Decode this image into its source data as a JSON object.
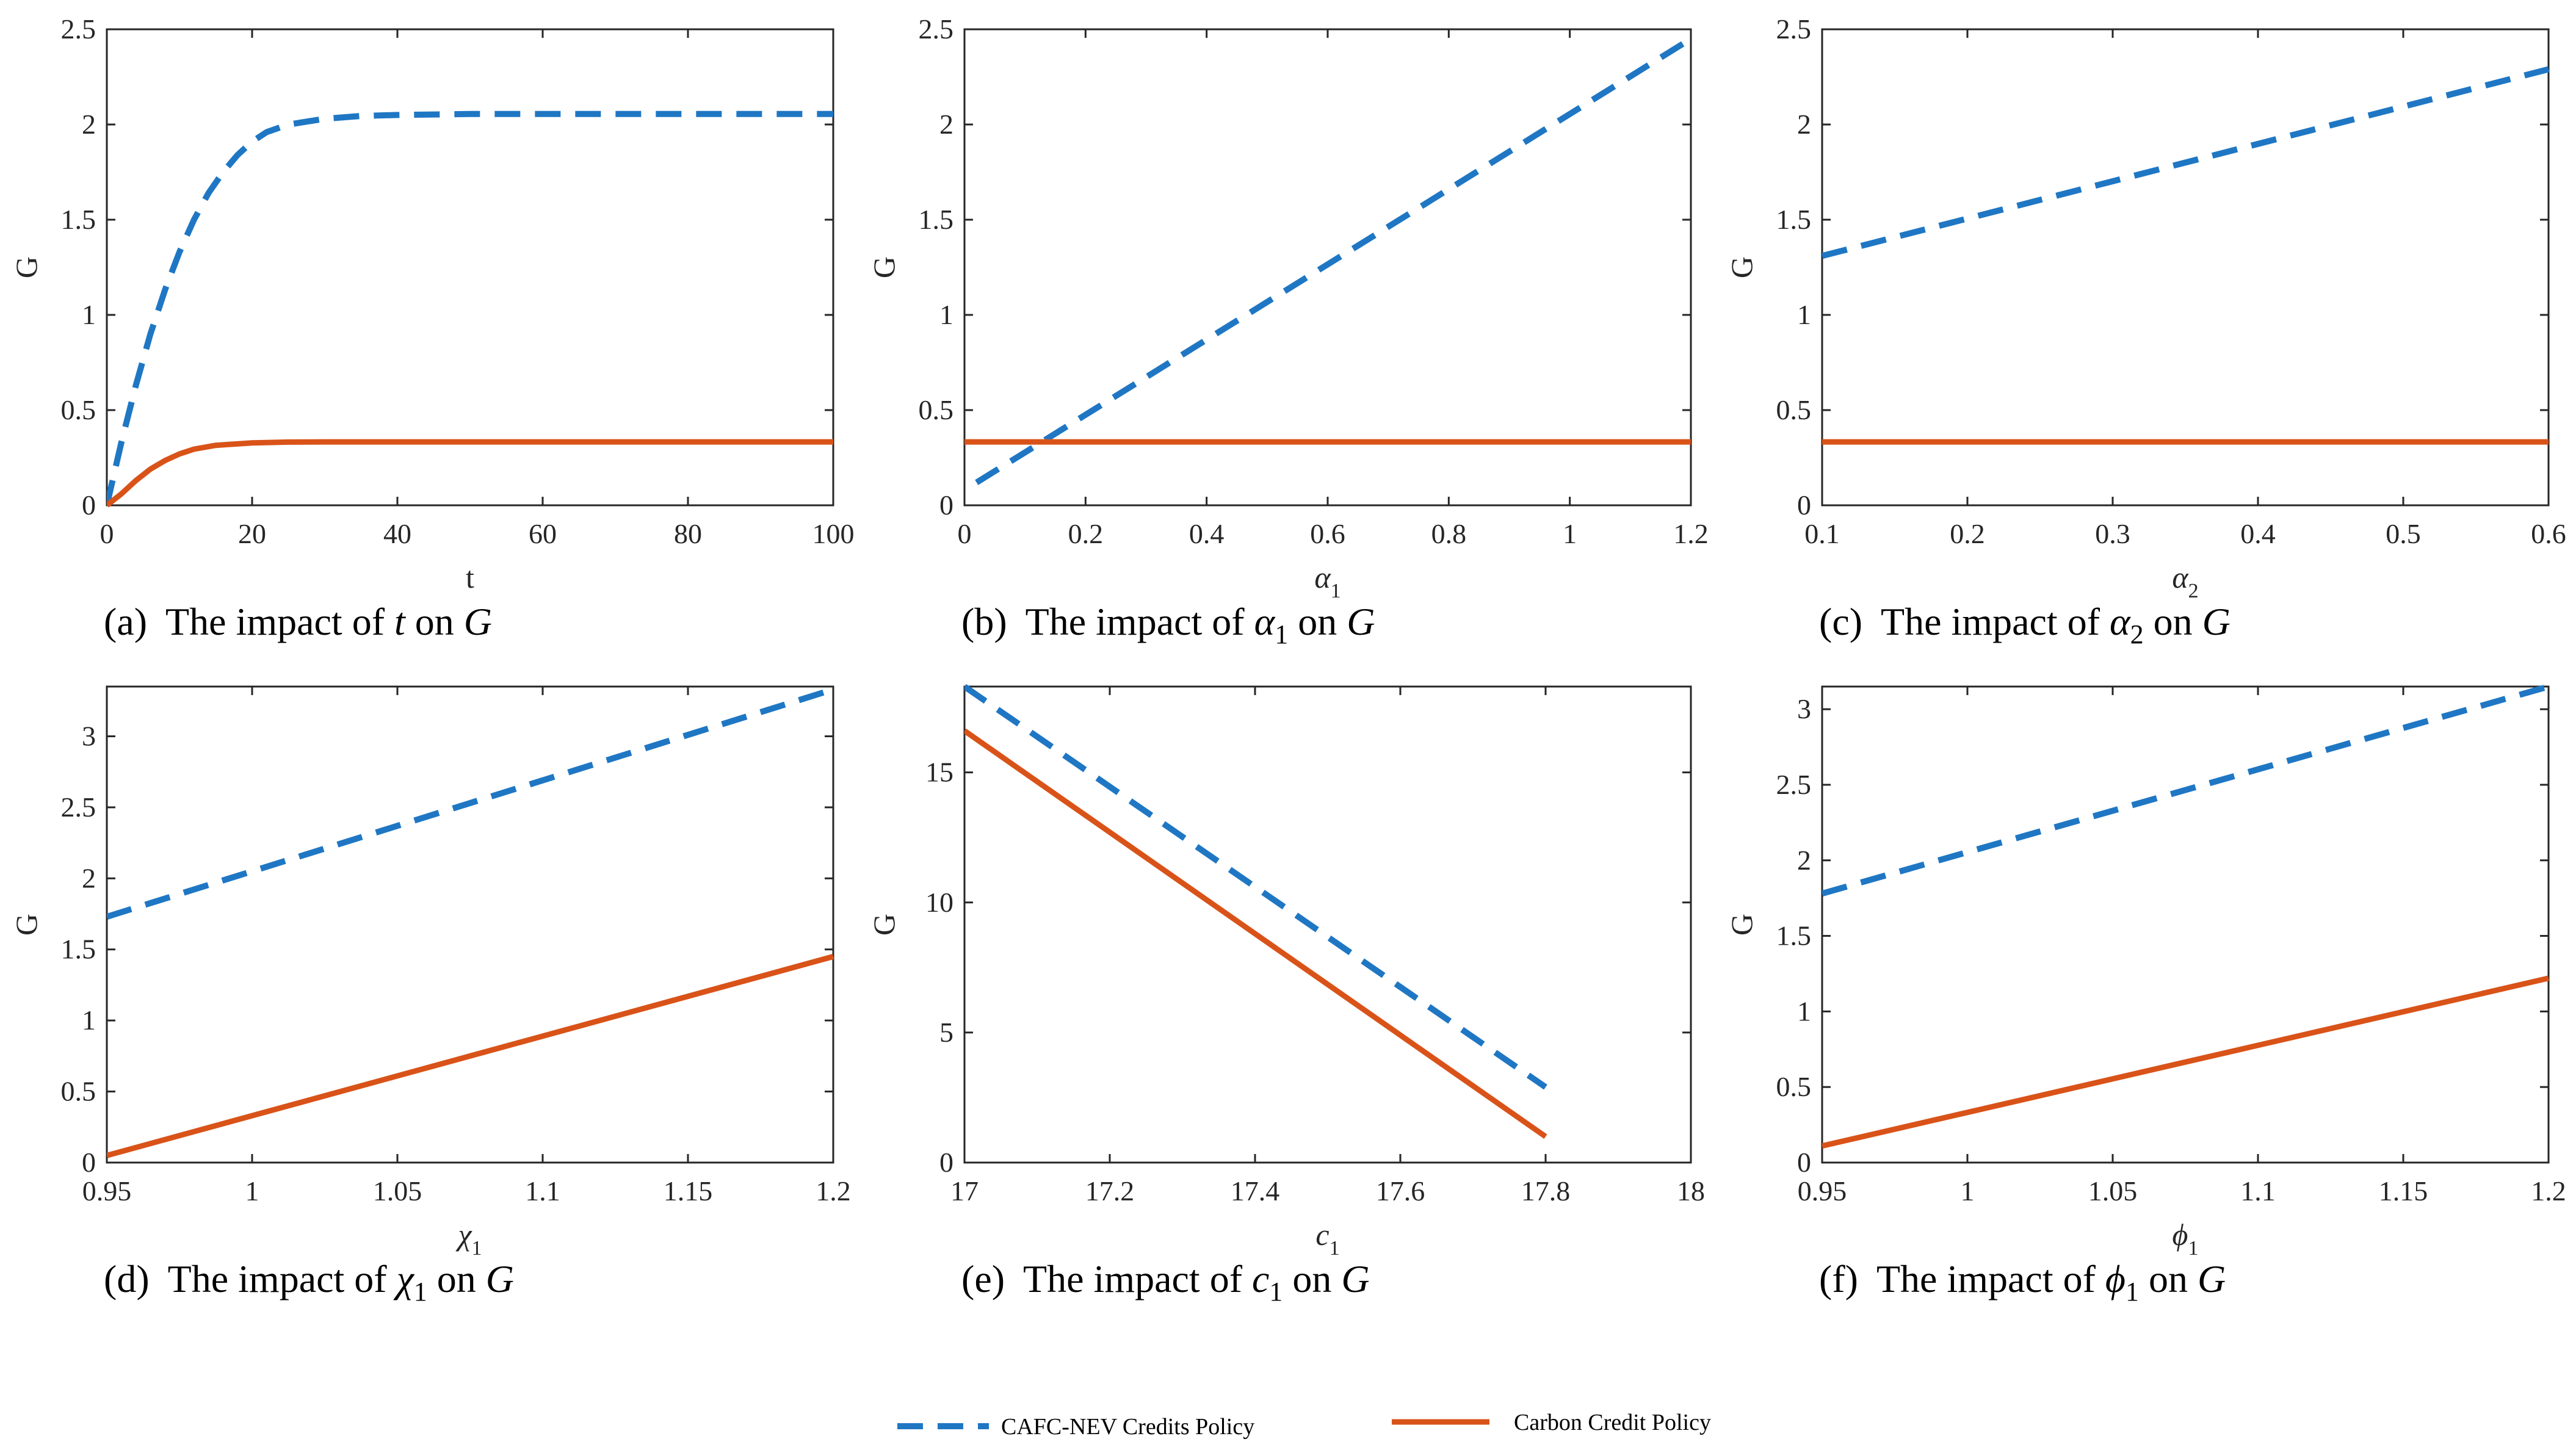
{
  "colors": {
    "cafc": "#1f77c4",
    "carbon": "#d95319"
  },
  "legend": {
    "cafc_label": "CAFC-NEV Credits Policy",
    "carbon_label": "Carbon Credit Policy"
  },
  "chart_data": [
    {
      "type": "line",
      "caption": {
        "tag": "(a)",
        "text": "The impact of",
        "var": "t",
        "sub": "",
        "tail": "on",
        "target": "G"
      },
      "xlabel": {
        "main": "t",
        "sub": ""
      },
      "ylabel": "G",
      "xlim": [
        0,
        100
      ],
      "ylim": [
        0,
        2.5
      ],
      "xticks": [
        0,
        20,
        40,
        60,
        80,
        100
      ],
      "xtick_labels": [
        "0",
        "20",
        "40",
        "60",
        "80",
        "100"
      ],
      "yticks": [
        0,
        0.5,
        1,
        1.5,
        2,
        2.5
      ],
      "ytick_labels": [
        "0",
        "0.5",
        "1",
        "1.5",
        "2",
        "2.5"
      ],
      "series": [
        {
          "name": "CAFC-NEV Credits Policy",
          "style": "dashed",
          "x": [
            0,
            2,
            4,
            6,
            8,
            10,
            12,
            14,
            16,
            18,
            20,
            22,
            25,
            30,
            35,
            40,
            50,
            60,
            70,
            80,
            90,
            100
          ],
          "y": [
            0,
            0.33,
            0.63,
            0.9,
            1.13,
            1.33,
            1.5,
            1.64,
            1.75,
            1.84,
            1.91,
            1.96,
            2.0,
            2.03,
            2.045,
            2.05,
            2.055,
            2.055,
            2.055,
            2.055,
            2.055,
            2.055
          ]
        },
        {
          "name": "Carbon Credit Policy",
          "style": "solid",
          "x": [
            0,
            2,
            4,
            6,
            8,
            10,
            12,
            15,
            20,
            25,
            30,
            40,
            60,
            80,
            100
          ],
          "y": [
            0,
            0.06,
            0.13,
            0.19,
            0.235,
            0.27,
            0.295,
            0.315,
            0.328,
            0.332,
            0.333,
            0.333,
            0.333,
            0.333,
            0.333
          ]
        }
      ]
    },
    {
      "type": "line",
      "caption": {
        "tag": "(b)",
        "text": "The impact of",
        "var": "α",
        "sub": "1",
        "tail": "on",
        "target": "G"
      },
      "xlabel": {
        "main": "α",
        "sub": "1"
      },
      "ylabel": "G",
      "xlim": [
        0,
        1.2
      ],
      "ylim": [
        0,
        2.5
      ],
      "xticks": [
        0,
        0.2,
        0.4,
        0.6,
        0.8,
        1,
        1.2
      ],
      "xtick_labels": [
        "0",
        "0.2",
        "0.4",
        "0.6",
        "0.8",
        "1",
        "1.2"
      ],
      "yticks": [
        0,
        0.5,
        1,
        1.5,
        2,
        2.5
      ],
      "ytick_labels": [
        "0",
        "0.5",
        "1",
        "1.5",
        "2",
        "2.5"
      ],
      "series": [
        {
          "name": "CAFC-NEV Credits Policy",
          "style": "dashed",
          "x": [
            0.02,
            1.2
          ],
          "y": [
            0.12,
            2.45
          ]
        },
        {
          "name": "Carbon Credit Policy",
          "style": "solid",
          "x": [
            0,
            1.2
          ],
          "y": [
            0.333,
            0.333
          ]
        }
      ]
    },
    {
      "type": "line",
      "caption": {
        "tag": "(c)",
        "text": "The impact of",
        "var": "α",
        "sub": "2",
        "tail": "on",
        "target": "G"
      },
      "xlabel": {
        "main": "α",
        "sub": "2"
      },
      "ylabel": "G",
      "xlim": [
        0.1,
        0.6
      ],
      "ylim": [
        0,
        2.5
      ],
      "xticks": [
        0.1,
        0.2,
        0.3,
        0.4,
        0.5,
        0.6
      ],
      "xtick_labels": [
        "0.1",
        "0.2",
        "0.3",
        "0.4",
        "0.5",
        "0.6"
      ],
      "yticks": [
        0,
        0.5,
        1,
        1.5,
        2,
        2.5
      ],
      "ytick_labels": [
        "0",
        "0.5",
        "1",
        "1.5",
        "2",
        "2.5"
      ],
      "series": [
        {
          "name": "CAFC-NEV Credits Policy",
          "style": "dashed",
          "x": [
            0.1,
            0.6
          ],
          "y": [
            1.31,
            2.29
          ]
        },
        {
          "name": "Carbon Credit Policy",
          "style": "solid",
          "x": [
            0.1,
            0.6
          ],
          "y": [
            0.333,
            0.333
          ]
        }
      ]
    },
    {
      "type": "line",
      "caption": {
        "tag": "(d)",
        "text": "The impact of",
        "var": "χ",
        "sub": "1",
        "tail": "on",
        "target": "G"
      },
      "xlabel": {
        "main": "χ",
        "sub": "1"
      },
      "ylabel": "G",
      "xlim": [
        0.95,
        1.2
      ],
      "ylim": [
        0,
        3.35
      ],
      "xticks": [
        0.95,
        1,
        1.05,
        1.1,
        1.15,
        1.2
      ],
      "xtick_labels": [
        "0.95",
        "1",
        "1.05",
        "1.1",
        "1.15",
        "1.2"
      ],
      "yticks": [
        0,
        0.5,
        1,
        1.5,
        2,
        2.5,
        3
      ],
      "ytick_labels": [
        "0",
        "0.5",
        "1",
        "1.5",
        "2",
        "2.5",
        "3"
      ],
      "series": [
        {
          "name": "CAFC-NEV Credits Policy",
          "style": "dashed",
          "x": [
            0.95,
            1.2
          ],
          "y": [
            1.73,
            3.33
          ]
        },
        {
          "name": "Carbon Credit Policy",
          "style": "solid",
          "x": [
            0.95,
            1.2
          ],
          "y": [
            0.05,
            1.45
          ]
        }
      ]
    },
    {
      "type": "line",
      "caption": {
        "tag": "(e)",
        "text": "The impact of",
        "var": "c",
        "sub": "1",
        "tail": "on",
        "target": "G"
      },
      "xlabel": {
        "main": "c",
        "sub": "1"
      },
      "ylabel": "G",
      "xlim": [
        17,
        18
      ],
      "ylim": [
        0,
        18.3
      ],
      "xticks": [
        17,
        17.2,
        17.4,
        17.6,
        17.8,
        18
      ],
      "xtick_labels": [
        "17",
        "17.2",
        "17.4",
        "17.6",
        "17.8",
        "18"
      ],
      "yticks": [
        0,
        5,
        10,
        15
      ],
      "ytick_labels": [
        "0",
        "5",
        "10",
        "15"
      ],
      "series": [
        {
          "name": "CAFC-NEV Credits Policy",
          "style": "dashed",
          "x": [
            17.0,
            17.8
          ],
          "y": [
            18.3,
            2.9
          ]
        },
        {
          "name": "Carbon Credit Policy",
          "style": "solid",
          "x": [
            17.0,
            17.8
          ],
          "y": [
            16.6,
            1.0
          ]
        }
      ]
    },
    {
      "type": "line",
      "caption": {
        "tag": "(f)",
        "text": "The impact of",
        "var": "ϕ",
        "sub": "1",
        "tail": "on",
        "target": "G"
      },
      "xlabel": {
        "main": "ϕ",
        "sub": "1"
      },
      "ylabel": "G",
      "xlim": [
        0.95,
        1.2
      ],
      "ylim": [
        0,
        3.15
      ],
      "xticks": [
        0.95,
        1,
        1.05,
        1.1,
        1.15,
        1.2
      ],
      "xtick_labels": [
        "0.95",
        "1",
        "1.05",
        "1.1",
        "1.15",
        "1.2"
      ],
      "yticks": [
        0,
        0.5,
        1,
        1.5,
        2,
        2.5,
        3
      ],
      "ytick_labels": [
        "0",
        "0.5",
        "1",
        "1.5",
        "2",
        "2.5",
        "3"
      ],
      "series": [
        {
          "name": "CAFC-NEV Credits Policy",
          "style": "dashed",
          "x": [
            0.95,
            1.2
          ],
          "y": [
            1.78,
            3.15
          ]
        },
        {
          "name": "Carbon Credit Policy",
          "style": "solid",
          "x": [
            0.95,
            1.2
          ],
          "y": [
            0.11,
            1.22
          ]
        }
      ]
    }
  ]
}
